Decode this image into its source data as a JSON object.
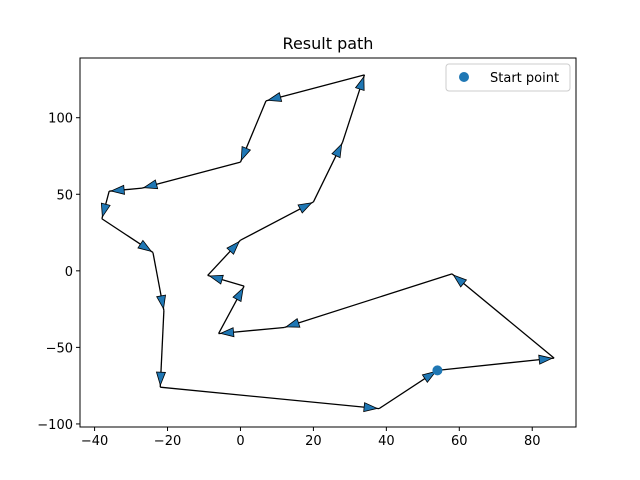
{
  "chart_data": {
    "type": "line",
    "title": "Result path",
    "xlabel": "",
    "ylabel": "",
    "xlim": [
      -44,
      92
    ],
    "ylim": [
      -102,
      139
    ],
    "xticks": [
      -40,
      -20,
      0,
      20,
      40,
      60,
      80
    ],
    "yticks": [
      -100,
      -50,
      0,
      50,
      100
    ],
    "grid": false,
    "legend": {
      "placement": "upper right",
      "entries": [
        "Start point"
      ]
    },
    "colors": {
      "path": "#000000",
      "arrow_fill": "#1f77b4",
      "arrow_edge": "#000000",
      "start_point": "#1f77b4"
    },
    "series": [
      {
        "name": "",
        "x": [
          54,
          86,
          58,
          12,
          -6,
          1,
          -9,
          0,
          20,
          28,
          34,
          7,
          0,
          -27,
          -36,
          -38,
          -24,
          -21,
          -22,
          38,
          54
        ],
        "y": [
          -65,
          -57,
          -2,
          -37,
          -41,
          -10,
          -3,
          20,
          45,
          84,
          128,
          111,
          71,
          54,
          52,
          34,
          12,
          -26,
          -76,
          -90,
          -65
        ]
      }
    ],
    "start_point": {
      "name": "Start point",
      "x": 54,
      "y": -65
    }
  }
}
